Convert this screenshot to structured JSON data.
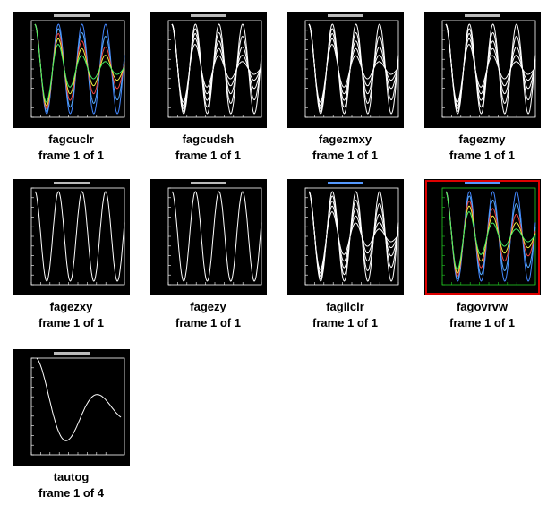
{
  "items": [
    {
      "name": "fagcuclr",
      "frame": "frame 1 of 1"
    },
    {
      "name": "fagcudsh",
      "frame": "frame 1 of 1"
    },
    {
      "name": "fagezmxy",
      "frame": "frame 1 of 1"
    },
    {
      "name": "fagezmy",
      "frame": "frame 1 of 1"
    },
    {
      "name": "fagezxy",
      "frame": "frame 1 of 1"
    },
    {
      "name": "fagezy",
      "frame": "frame 1 of 1"
    },
    {
      "name": "fagilclr",
      "frame": "frame 1 of 1"
    },
    {
      "name": "fagovrvw",
      "frame": "frame 1 of 1"
    },
    {
      "name": "tautog",
      "frame": "frame 1 of 4"
    }
  ]
}
